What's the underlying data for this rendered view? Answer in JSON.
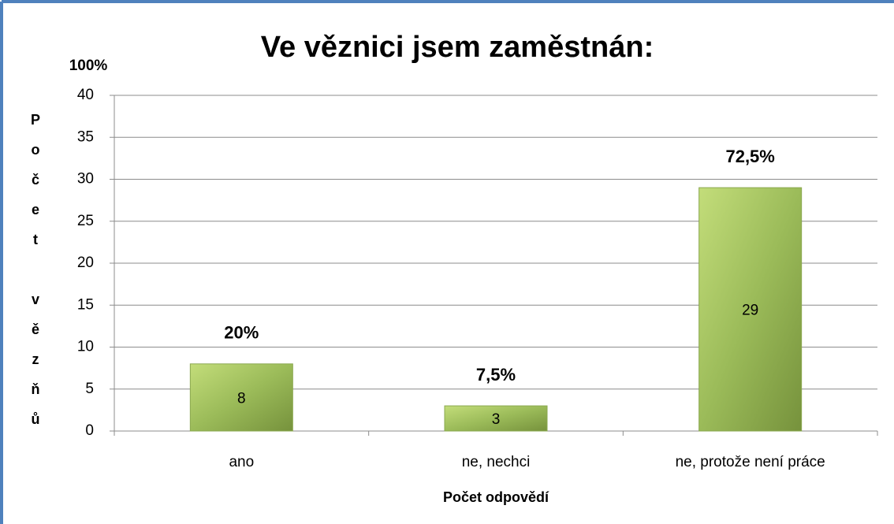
{
  "chart_data": {
    "type": "bar",
    "title": "Ve věznici jsem zaměstnán:",
    "annotation": "100%",
    "y_label": "Počet vězňů",
    "x_label": "Počet odpovědí",
    "categories": [
      "ano",
      "ne, nechci",
      "ne, protože není práce"
    ],
    "values": [
      8,
      3,
      29
    ],
    "percent_labels": [
      "20%",
      "7,5%",
      "72,5%"
    ],
    "color": "#9bbb59",
    "ylim": [
      0,
      40
    ],
    "yticks": [
      0,
      5,
      10,
      15,
      20,
      25,
      30,
      35,
      40
    ],
    "grid": true
  }
}
